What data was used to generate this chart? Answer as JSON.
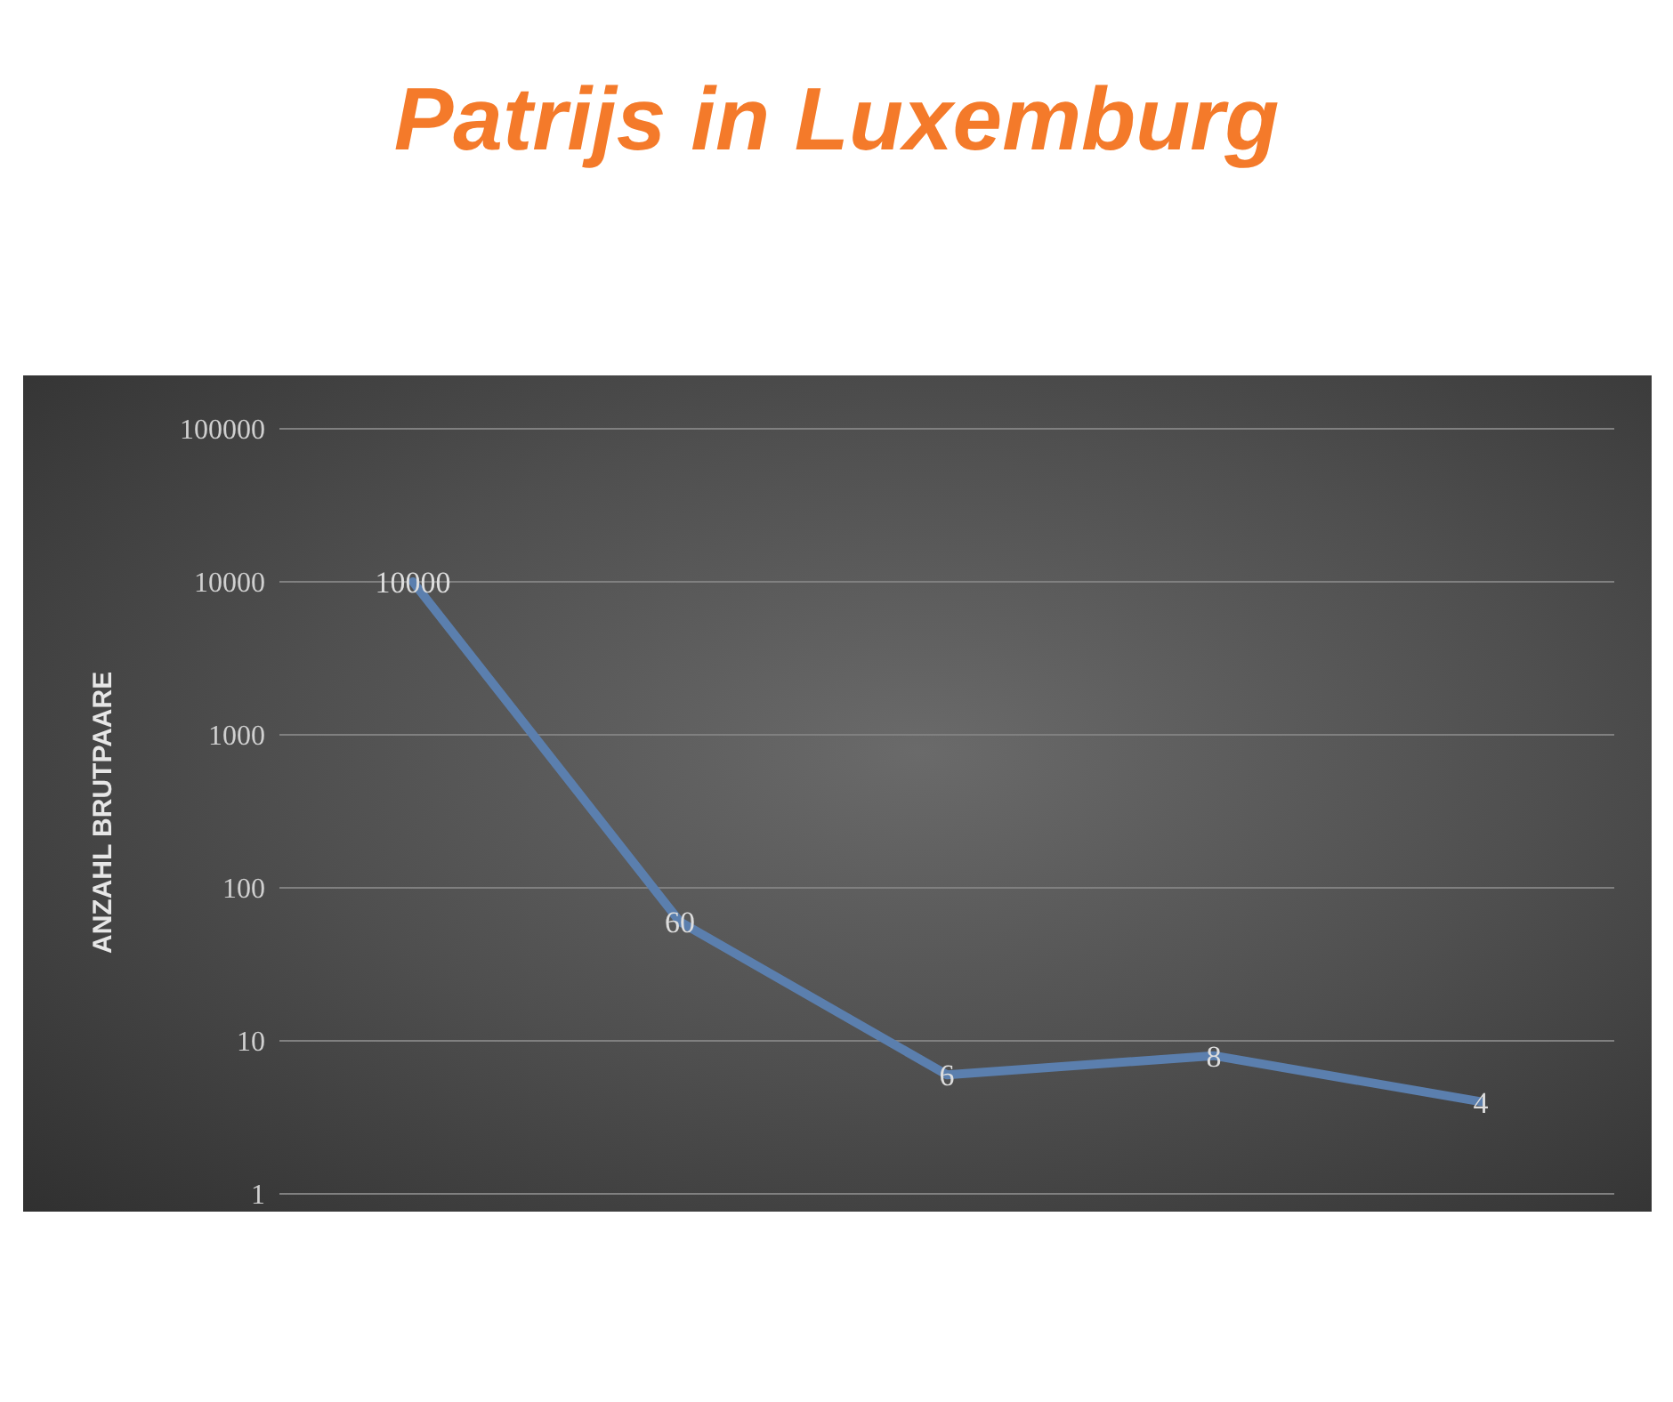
{
  "chart_data": {
    "type": "line",
    "title": "Patrijs in Luxemburg",
    "ylabel": "ANZAHL BRUTPAARE",
    "categories": [
      null,
      null,
      null,
      null,
      null
    ],
    "series": [
      {
        "color": "#5b7fae",
        "values": [
          10000,
          60,
          6,
          8,
          4
        ]
      }
    ],
    "log": "y",
    "ylim": [
      1,
      100000
    ],
    "yticks": [
      1,
      10,
      100,
      1000,
      10000,
      100000
    ],
    "grid": "y",
    "data_labels": true,
    "marker": "none",
    "line_style": "solid",
    "legend": false,
    "tick_labels": "y"
  }
}
